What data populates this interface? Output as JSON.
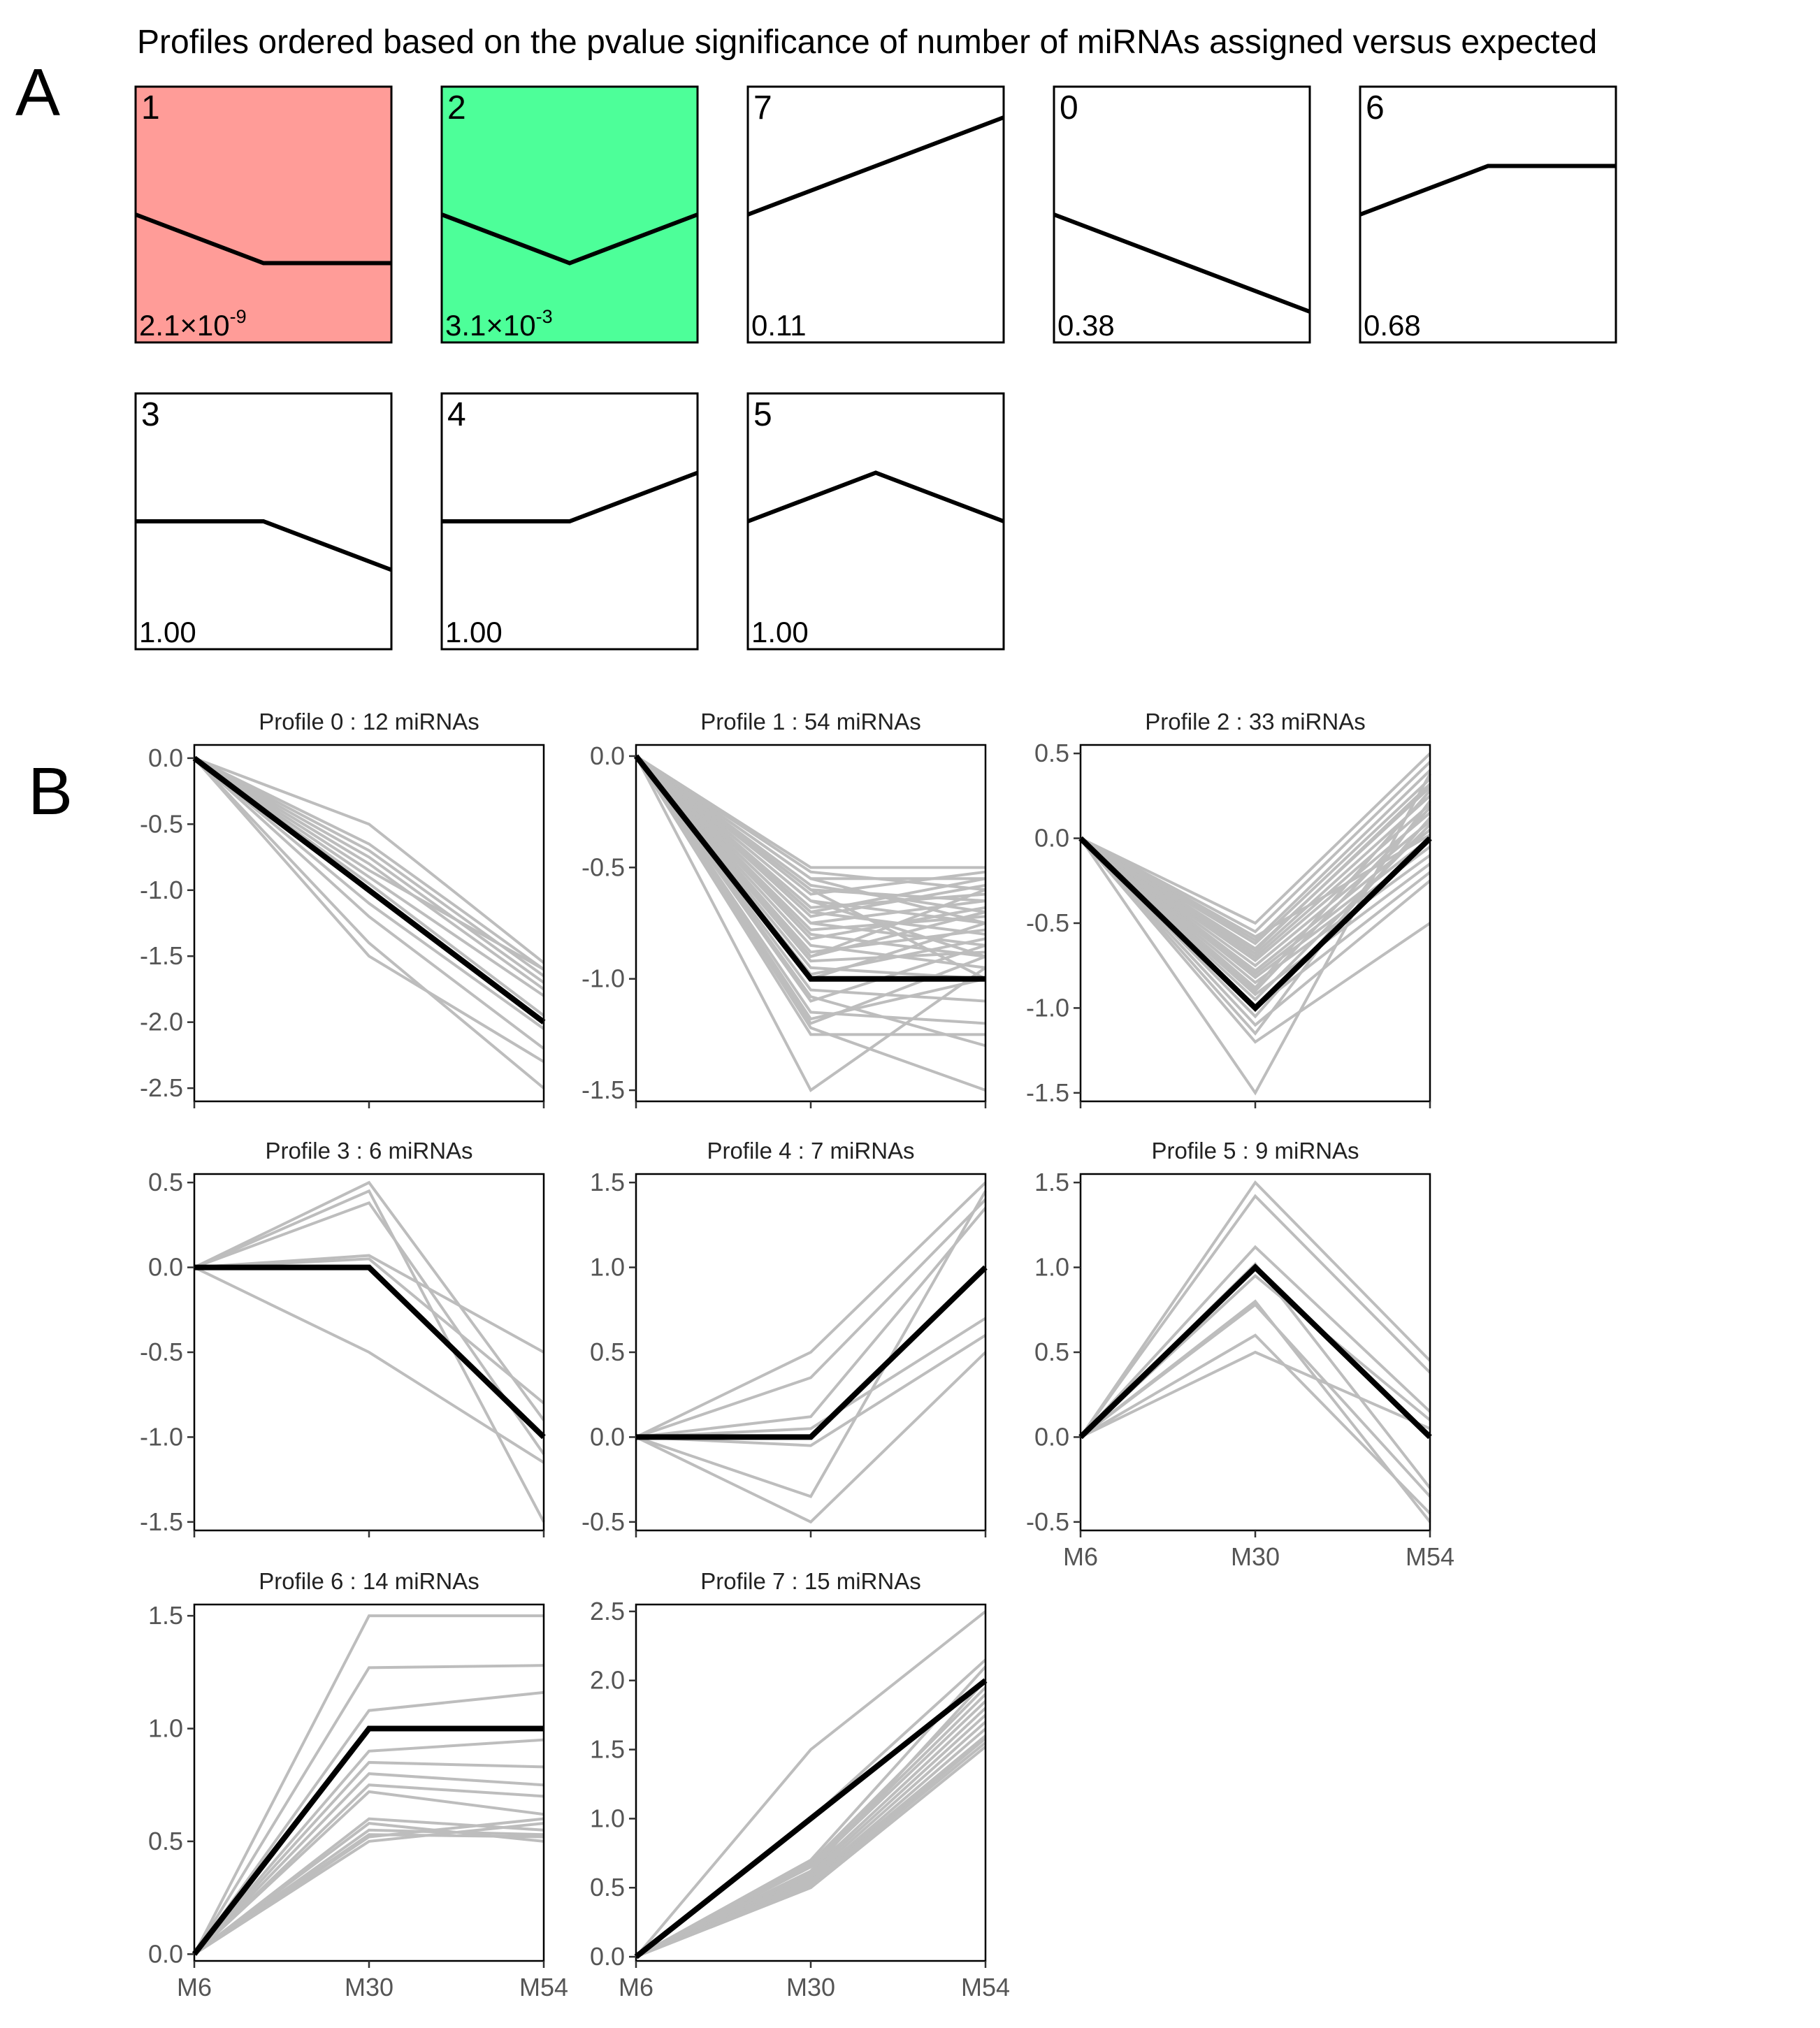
{
  "panel_a": {
    "letter": "A",
    "heading": "Profiles ordered based on the pvalue significance of number of miRNAs assigned versus expected",
    "colors": {
      "significant_1": "#ff9c98",
      "significant_2": "#4dff99",
      "default": "#ffffff",
      "line": "#000000"
    },
    "boxes": [
      {
        "id": "1",
        "shape": [
          0,
          -1,
          -1
        ],
        "fill": "#ff9c98",
        "p_base": "2.1×10",
        "p_exp": "-9"
      },
      {
        "id": "2",
        "shape": [
          0,
          -1,
          0
        ],
        "fill": "#4dff99",
        "p_base": "3.1×10",
        "p_exp": "-3"
      },
      {
        "id": "7",
        "shape": [
          0,
          1,
          2
        ],
        "fill": "#ffffff",
        "p_base": "0.11",
        "p_exp": ""
      },
      {
        "id": "0",
        "shape": [
          0,
          -1,
          -2
        ],
        "fill": "#ffffff",
        "p_base": "0.38",
        "p_exp": ""
      },
      {
        "id": "6",
        "shape": [
          0,
          1,
          1
        ],
        "fill": "#ffffff",
        "p_base": "0.68",
        "p_exp": ""
      },
      {
        "id": "3",
        "shape": [
          0,
          0,
          -1
        ],
        "fill": "#ffffff",
        "p_base": "1.00",
        "p_exp": ""
      },
      {
        "id": "4",
        "shape": [
          0,
          0,
          1
        ],
        "fill": "#ffffff",
        "p_base": "1.00",
        "p_exp": ""
      },
      {
        "id": "5",
        "shape": [
          0,
          1,
          0
        ],
        "fill": "#ffffff",
        "p_base": "1.00",
        "p_exp": ""
      }
    ]
  },
  "panel_b": {
    "letter": "B",
    "colors": {
      "member_line": "#bdbdbd",
      "model_line": "#000000"
    }
  },
  "chart_data": [
    {
      "type": "line",
      "title": "Profile 0 : 12 miRNAs",
      "categories": [
        "M6",
        "M30",
        "M54"
      ],
      "ylim": [
        -2.6,
        0.1
      ],
      "yticks": [
        "0.0",
        "-0.5",
        "-1.0",
        "-1.5",
        "-2.0",
        "-2.5"
      ],
      "ytick_values": [
        0,
        -0.5,
        -1,
        -1.5,
        -2,
        -2.5
      ],
      "show_xticks": false,
      "model": [
        0,
        -1,
        -2
      ],
      "members": [
        [
          0,
          -0.5,
          -1.55
        ],
        [
          0,
          -0.65,
          -1.6
        ],
        [
          0,
          -0.75,
          -1.7
        ],
        [
          0,
          -0.8,
          -1.75
        ],
        [
          0,
          -0.85,
          -1.6
        ],
        [
          0,
          -0.9,
          -1.8
        ],
        [
          0,
          -0.95,
          -1.95
        ],
        [
          0,
          -1.1,
          -2.05
        ],
        [
          0,
          -1.2,
          -2.2
        ],
        [
          0,
          -1.4,
          -2.5
        ],
        [
          0,
          -1.5,
          -2.3
        ],
        [
          0,
          -0.7,
          -1.65
        ]
      ]
    },
    {
      "type": "line",
      "title": "Profile 1 : 54 miRNAs",
      "categories": [
        "M6",
        "M30",
        "M54"
      ],
      "ylim": [
        -1.55,
        0.05
      ],
      "yticks": [
        "0.0",
        "-0.5",
        "-1.0",
        "-1.5"
      ],
      "ytick_values": [
        0,
        -0.5,
        -1,
        -1.5
      ],
      "show_xticks": false,
      "model": [
        0,
        -1,
        -1
      ],
      "members": [
        [
          0,
          -0.5,
          -0.5
        ],
        [
          0,
          -0.52,
          -0.6
        ],
        [
          0,
          -0.55,
          -0.55
        ],
        [
          0,
          -0.58,
          -0.7
        ],
        [
          0,
          -0.6,
          -0.65
        ],
        [
          0,
          -0.62,
          -0.52
        ],
        [
          0,
          -0.65,
          -0.75
        ],
        [
          0,
          -0.68,
          -0.62
        ],
        [
          0,
          -0.7,
          -0.8
        ],
        [
          0,
          -0.72,
          -0.58
        ],
        [
          0,
          -0.75,
          -0.85
        ],
        [
          0,
          -0.78,
          -0.72
        ],
        [
          0,
          -0.8,
          -0.9
        ],
        [
          0,
          -0.82,
          -0.68
        ],
        [
          0,
          -0.85,
          -0.95
        ],
        [
          0,
          -0.88,
          -0.78
        ],
        [
          0,
          -0.9,
          -0.6
        ],
        [
          0,
          -0.92,
          -0.88
        ],
        [
          0,
          -0.95,
          -1.0
        ],
        [
          0,
          -0.98,
          -0.82
        ],
        [
          0,
          -1.0,
          -0.75
        ],
        [
          0,
          -1.05,
          -1.1
        ],
        [
          0,
          -1.1,
          -0.85
        ],
        [
          0,
          -1.15,
          -1.2
        ],
        [
          0,
          -1.2,
          -0.9
        ],
        [
          0,
          -1.25,
          -1.25
        ],
        [
          0,
          -1.5,
          -0.95
        ],
        [
          0,
          -1.22,
          -1.5
        ],
        [
          0,
          -0.6,
          -1.0
        ],
        [
          0,
          -0.65,
          -0.9
        ],
        [
          0,
          -0.55,
          -0.75
        ],
        [
          0,
          -0.7,
          -0.55
        ],
        [
          0,
          -0.75,
          -0.65
        ],
        [
          0,
          -1.08,
          -1.3
        ],
        [
          0,
          -1.18,
          -1.0
        ],
        [
          0,
          -0.9,
          -0.7
        ]
      ]
    },
    {
      "type": "line",
      "title": "Profile 2 : 33 miRNAs",
      "categories": [
        "M6",
        "M30",
        "M54"
      ],
      "ylim": [
        -1.55,
        0.55
      ],
      "yticks": [
        "0.5",
        "0.0",
        "-0.5",
        "-1.0",
        "-1.5"
      ],
      "ytick_values": [
        0.5,
        0,
        -0.5,
        -1,
        -1.5
      ],
      "show_xticks": false,
      "model": [
        0,
        -1,
        0
      ],
      "members": [
        [
          0,
          -0.5,
          0.5
        ],
        [
          0,
          -0.55,
          0.45
        ],
        [
          0,
          -0.6,
          0.4
        ],
        [
          0,
          -0.62,
          0.35
        ],
        [
          0,
          -0.65,
          0.3
        ],
        [
          0,
          -0.68,
          0.25
        ],
        [
          0,
          -0.7,
          0.2
        ],
        [
          0,
          -0.72,
          0.15
        ],
        [
          0,
          -0.75,
          0.1
        ],
        [
          0,
          -0.78,
          0.05
        ],
        [
          0,
          -0.8,
          0.0
        ],
        [
          0,
          -0.82,
          -0.05
        ],
        [
          0,
          -0.85,
          -0.1
        ],
        [
          0,
          -0.88,
          0.28
        ],
        [
          0,
          -0.9,
          0.18
        ],
        [
          0,
          -0.92,
          -0.15
        ],
        [
          0,
          -0.95,
          0.08
        ],
        [
          0,
          -1.0,
          -0.2
        ],
        [
          0,
          -1.05,
          0.12
        ],
        [
          0,
          -1.1,
          -0.25
        ],
        [
          0,
          -1.15,
          0.22
        ],
        [
          0,
          -1.2,
          -0.5
        ],
        [
          0,
          -1.5,
          0.38
        ],
        [
          0,
          -0.58,
          0.02
        ],
        [
          0,
          -0.66,
          0.32
        ]
      ]
    },
    {
      "type": "line",
      "title": "Profile 3 : 6 miRNAs",
      "categories": [
        "M6",
        "M30",
        "M54"
      ],
      "ylim": [
        -1.55,
        0.55
      ],
      "yticks": [
        "0.5",
        "0.0",
        "-0.5",
        "-1.0",
        "-1.5"
      ],
      "ytick_values": [
        0.5,
        0,
        -0.5,
        -1,
        -1.5
      ],
      "show_xticks": false,
      "model": [
        0,
        0,
        -1
      ],
      "members": [
        [
          0,
          0.5,
          -0.9
        ],
        [
          0,
          0.45,
          -1.5
        ],
        [
          0,
          0.38,
          -1.1
        ],
        [
          0,
          0.07,
          -0.5
        ],
        [
          0,
          0.05,
          -0.8
        ],
        [
          0,
          -0.5,
          -1.15
        ]
      ]
    },
    {
      "type": "line",
      "title": "Profile 4 : 7 miRNAs",
      "categories": [
        "M6",
        "M30",
        "M54"
      ],
      "ylim": [
        -0.55,
        1.55
      ],
      "yticks": [
        "1.5",
        "1.0",
        "0.5",
        "0.0",
        "-0.5"
      ],
      "ytick_values": [
        1.5,
        1,
        0.5,
        0,
        -0.5
      ],
      "show_xticks": false,
      "model": [
        0,
        0,
        1
      ],
      "members": [
        [
          0,
          0.5,
          1.5
        ],
        [
          0,
          0.35,
          1.4
        ],
        [
          0,
          0.12,
          1.35
        ],
        [
          0,
          0.05,
          0.7
        ],
        [
          0,
          -0.05,
          0.6
        ],
        [
          0,
          -0.35,
          1.45
        ],
        [
          0,
          -0.5,
          0.5
        ]
      ]
    },
    {
      "type": "line",
      "title": "Profile 5 : 9 miRNAs",
      "categories": [
        "M6",
        "M30",
        "M54"
      ],
      "ylim": [
        -0.55,
        1.55
      ],
      "yticks": [
        "1.5",
        "1.0",
        "0.5",
        "0.0",
        "-0.5"
      ],
      "ytick_values": [
        1.5,
        1,
        0.5,
        0,
        -0.5
      ],
      "show_xticks": true,
      "model": [
        0,
        1,
        0
      ],
      "members": [
        [
          0,
          1.5,
          0.45
        ],
        [
          0,
          1.42,
          0.38
        ],
        [
          0,
          1.12,
          0.15
        ],
        [
          0,
          1.02,
          -0.3
        ],
        [
          0,
          0.95,
          0.1
        ],
        [
          0,
          0.8,
          -0.5
        ],
        [
          0,
          0.78,
          -0.35
        ],
        [
          0,
          0.6,
          -0.45
        ],
        [
          0,
          0.5,
          0.05
        ]
      ]
    },
    {
      "type": "line",
      "title": "Profile 6 : 14 miRNAs",
      "categories": [
        "M6",
        "M30",
        "M54"
      ],
      "ylim": [
        -0.03,
        1.55
      ],
      "yticks": [
        "1.5",
        "1.0",
        "0.5",
        "0.0"
      ],
      "ytick_values": [
        1.5,
        1,
        0.5,
        0
      ],
      "show_xticks": true,
      "model": [
        0,
        1,
        1
      ],
      "members": [
        [
          0,
          1.5,
          1.5
        ],
        [
          0,
          1.27,
          1.28
        ],
        [
          0,
          1.08,
          1.16
        ],
        [
          0,
          0.9,
          0.95
        ],
        [
          0,
          0.85,
          0.83
        ],
        [
          0,
          0.8,
          0.75
        ],
        [
          0,
          0.75,
          0.7
        ],
        [
          0,
          0.72,
          0.62
        ],
        [
          0,
          0.6,
          0.55
        ],
        [
          0,
          0.58,
          0.5
        ],
        [
          0,
          0.55,
          0.53
        ],
        [
          0,
          0.53,
          0.52
        ],
        [
          0,
          0.52,
          0.6
        ],
        [
          0,
          0.5,
          0.58
        ]
      ]
    },
    {
      "type": "line",
      "title": "Profile 7 : 15 miRNAs",
      "categories": [
        "M6",
        "M30",
        "M54"
      ],
      "ylim": [
        -0.03,
        2.55
      ],
      "yticks": [
        "2.5",
        "2.0",
        "1.5",
        "1.0",
        "0.5",
        "0.0"
      ],
      "ytick_values": [
        2.5,
        2,
        1.5,
        1,
        0.5,
        0
      ],
      "show_xticks": true,
      "model": [
        0,
        1,
        2
      ],
      "members": [
        [
          0,
          1.5,
          2.5
        ],
        [
          0,
          1.0,
          2.15
        ],
        [
          0,
          0.7,
          2.1
        ],
        [
          0,
          0.68,
          1.95
        ],
        [
          0,
          0.65,
          1.85
        ],
        [
          0,
          0.62,
          1.8
        ],
        [
          0,
          0.6,
          1.75
        ],
        [
          0,
          0.58,
          1.7
        ],
        [
          0,
          0.56,
          1.65
        ],
        [
          0,
          0.55,
          1.6
        ],
        [
          0,
          0.53,
          1.58
        ],
        [
          0,
          0.52,
          1.55
        ],
        [
          0,
          0.5,
          1.52
        ],
        [
          0,
          0.62,
          2.0
        ],
        [
          0,
          0.66,
          1.9
        ]
      ]
    }
  ]
}
